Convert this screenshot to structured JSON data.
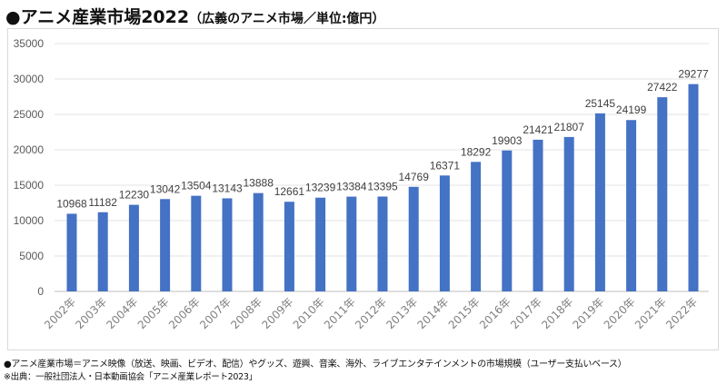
{
  "header": {
    "title": "●アニメ産業市場2022",
    "subtitle": "（広義のアニメ市場／単位:億円）"
  },
  "chart_data": {
    "type": "bar",
    "title": "アニメ産業市場2022（広義のアニメ市場／単位:億円）",
    "xlabel": "",
    "ylabel": "",
    "ylim": [
      0,
      35000
    ],
    "yticks": [
      0,
      5000,
      10000,
      15000,
      20000,
      25000,
      30000,
      35000
    ],
    "grid": true,
    "bar_color": "#4472c4",
    "categories": [
      "2002年",
      "2003年",
      "2004年",
      "2005年",
      "2006年",
      "2007年",
      "2008年",
      "2009年",
      "2010年",
      "2011年",
      "2012年",
      "2013年",
      "2014年",
      "2015年",
      "2016年",
      "2017年",
      "2018年",
      "2019年",
      "2020年",
      "2021年",
      "2022年"
    ],
    "values": [
      10968,
      11182,
      12230,
      13042,
      13504,
      13143,
      13888,
      12661,
      13239,
      13384,
      13395,
      14769,
      16371,
      18292,
      19903,
      21421,
      21807,
      25145,
      24199,
      27422,
      29277
    ]
  },
  "footer": {
    "note": "●アニメ産業市場＝アニメ映像（放送、映画、ビデオ、配信）やグッズ、遊興、音楽、海外、ライブエンタテインメントの市場規模（ユーザー支払いベース）",
    "source": "※出典：一般社団法人・日本動画協会「アニメ産業レポート2023」"
  }
}
